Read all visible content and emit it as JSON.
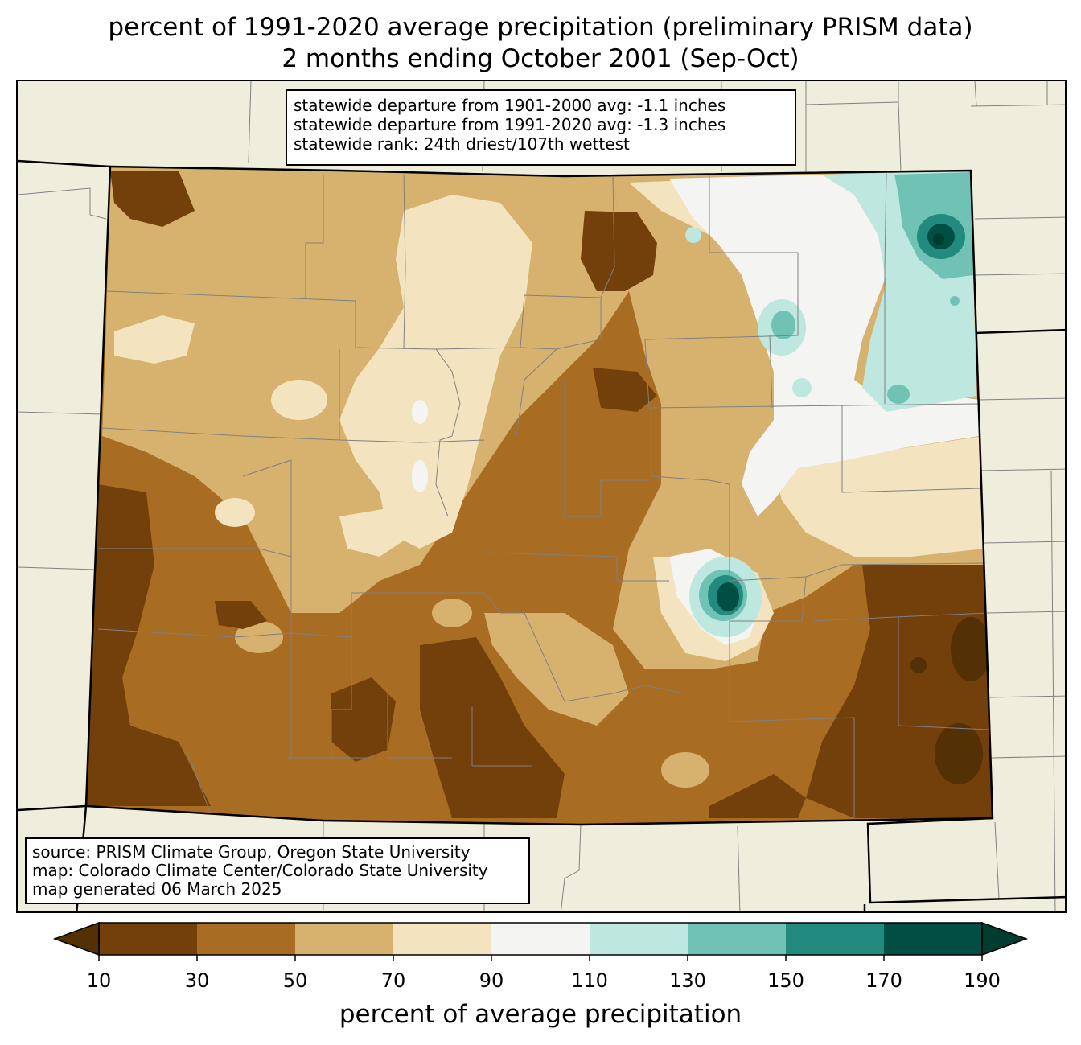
{
  "title": {
    "line1": "percent of 1991-2020 average precipitation (preliminary PRISM data)",
    "line2": "2 months ending October 2001 (Sep-Oct)"
  },
  "stats": {
    "line1": "statewide departure from 1901-2000 avg: -1.1 inches",
    "line2": "statewide departure from 1991-2020 avg: -1.3 inches",
    "line3": "statewide rank: 24th driest/107th wettest"
  },
  "source": {
    "line1": "source: PRISM Climate Group, Oregon State University",
    "line2": "map: Colorado Climate Center/Colorado State University",
    "line3": "map generated 06 March 2025"
  },
  "colorbar": {
    "label": "percent of average precipitation",
    "ticks": [
      "10",
      "30",
      "50",
      "70",
      "90",
      "110",
      "130",
      "150",
      "170",
      "190"
    ],
    "colors": [
      "#733f0b",
      "#a96c23",
      "#d7b26e",
      "#f3e4bf",
      "#f4f4f2",
      "#bde7df",
      "#6fc2b4",
      "#238a7f",
      "#014f44"
    ],
    "under_color": "#543005",
    "over_color": "#003c30"
  },
  "map_colors": {
    "land_outside": "#efeedc",
    "county_lines": "#808080",
    "state_border": "#000000"
  }
}
